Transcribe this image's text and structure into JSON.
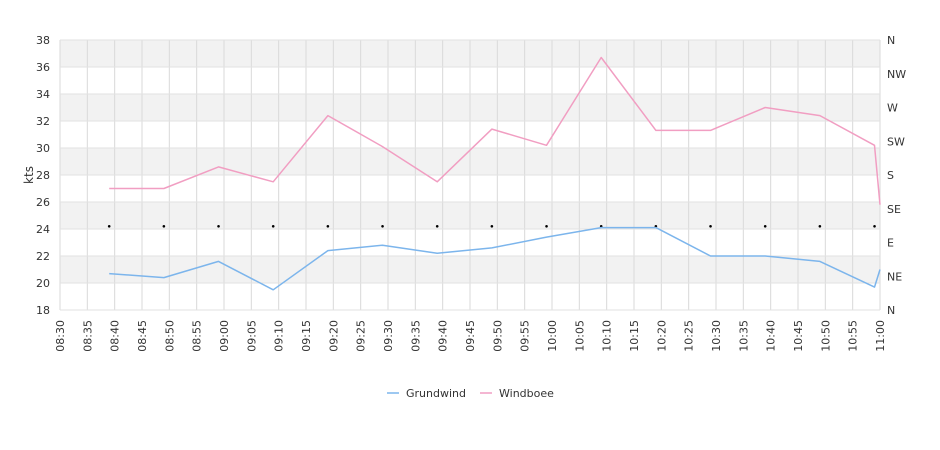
{
  "chart_data": {
    "type": "line",
    "ylabel": "kts",
    "ylim": [
      18,
      38
    ],
    "y_ticks": [
      18,
      20,
      22,
      24,
      26,
      28,
      30,
      32,
      34,
      36,
      38
    ],
    "x_time_range": [
      "08:30",
      "11:00"
    ],
    "x_tick_labels": [
      "08:30",
      "08:35",
      "08:40",
      "08:45",
      "08:50",
      "08:55",
      "09:00",
      "09:05",
      "09:10",
      "09:15",
      "09:20",
      "09:25",
      "09:30",
      "09:35",
      "09:40",
      "09:45",
      "09:50",
      "09:55",
      "10:00",
      "10:05",
      "10:10",
      "10:15",
      "10:20",
      "10:25",
      "10:30",
      "10:35",
      "10:40",
      "10:45",
      "10:50",
      "10:55",
      "11:00"
    ],
    "y2_direction_labels": [
      "N",
      "NE",
      "E",
      "SE",
      "S",
      "SW",
      "W",
      "NW",
      "N"
    ],
    "grid": true,
    "legend_position": "bottom",
    "series": [
      {
        "name": "Grundwind",
        "color": "#7cb5ec",
        "x": [
          "08:39",
          "08:49",
          "08:59",
          "09:09",
          "09:19",
          "09:29",
          "09:39",
          "09:49",
          "09:59",
          "10:09",
          "10:19",
          "10:29",
          "10:39",
          "10:49",
          "10:59",
          "11:00"
        ],
        "values": [
          20.7,
          20.4,
          21.6,
          19.5,
          22.4,
          22.8,
          22.2,
          22.6,
          23.4,
          24.1,
          24.1,
          22.0,
          22.0,
          21.6,
          19.7,
          21.0
        ]
      },
      {
        "name": "Windboee",
        "color": "#f19ec2",
        "x": [
          "08:39",
          "08:49",
          "08:59",
          "09:09",
          "09:19",
          "09:29",
          "09:39",
          "09:49",
          "09:59",
          "10:09",
          "10:19",
          "10:29",
          "10:39",
          "10:49",
          "10:59",
          "11:00"
        ],
        "values": [
          27.0,
          27.0,
          28.6,
          27.5,
          32.4,
          30.1,
          27.5,
          31.4,
          30.2,
          36.7,
          31.3,
          31.3,
          33.0,
          32.4,
          30.2,
          25.8
        ]
      }
    ],
    "direction_markers": {
      "x": [
        "08:39",
        "08:49",
        "08:59",
        "09:09",
        "09:19",
        "09:29",
        "09:39",
        "09:49",
        "09:59",
        "10:09",
        "10:19",
        "10:29",
        "10:39",
        "10:49",
        "10:59"
      ],
      "level": 24.2
    }
  }
}
